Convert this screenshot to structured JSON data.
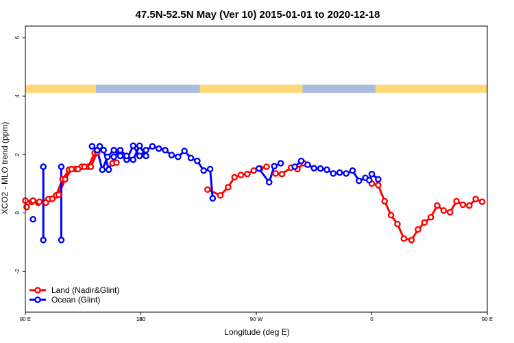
{
  "chart_data": {
    "type": "line",
    "title": "47.5N-52.5N May (Ver 10)   2015-01-01 to 2020-12-18",
    "xlabel": "Longitude (deg E)",
    "ylabel": "XCO2 - MLO trend (ppm)",
    "xlim": [
      90,
      450
    ],
    "ylim": [
      -3.4,
      6.4
    ],
    "x_ticks": [
      {
        "value": 90,
        "label": "90 E"
      },
      {
        "value": 180,
        "label": "180"
      },
      {
        "value": 270,
        "label": "90 W"
      },
      {
        "value": 360,
        "label": "0"
      },
      {
        "value": 450,
        "label": "90 E"
      },
      {
        "value": 540,
        "label": "180"
      }
    ],
    "y_ticks": [
      {
        "value": -2,
        "label": "-2"
      },
      {
        "value": 0,
        "label": "0"
      },
      {
        "value": 2,
        "label": "2"
      },
      {
        "value": 4,
        "label": "4"
      },
      {
        "value": 6,
        "label": "6"
      }
    ],
    "legend_position": "bottom-left",
    "colors": {
      "land": "#ff0000",
      "ocean": "#0000ff",
      "strip_land": "#ffd978",
      "strip_ocean": "#a8bcdc"
    },
    "land_mask": {
      "y": 4.25,
      "land_ranges": [
        [
          90,
          145
        ],
        [
          226,
          306
        ],
        [
          363,
          503
        ]
      ]
    },
    "series": [
      {
        "name": "Land (Nadir&Glint)",
        "color": "#ff0000",
        "points": [
          [
            90,
            0.42
          ],
          [
            95,
            0.38
          ],
          [
            100,
            0.35
          ],
          [
            108,
            0.47
          ],
          [
            114,
            0.6
          ],
          [
            119,
            1.15
          ],
          [
            124,
            1.48
          ],
          [
            129,
            1.5
          ],
          [
            134,
            1.58
          ],
          [
            139,
            1.58
          ],
          [
            144,
            2.05
          ],
          null,
          [
            158,
            1.7
          ],
          null,
          [
            232,
            0.8
          ],
          [
            242,
            0.6
          ],
          [
            248,
            0.88
          ],
          [
            253,
            1.22
          ],
          [
            258,
            1.3
          ],
          [
            263,
            1.33
          ],
          [
            268,
            1.45
          ],
          [
            273,
            1.52
          ],
          [
            278,
            1.58
          ],
          null,
          [
            285,
            1.35
          ],
          [
            290,
            1.33
          ],
          [
            297,
            1.55
          ],
          [
            302,
            1.5
          ],
          [
            307,
            1.7
          ],
          null,
          [
            360,
            1.0
          ],
          [
            365,
            0.95
          ],
          [
            370,
            0.4
          ],
          [
            375,
            -0.08
          ],
          [
            380,
            -0.38
          ],
          [
            385,
            -0.88
          ],
          [
            391,
            -0.93
          ],
          [
            396,
            -0.57
          ],
          [
            401,
            -0.33
          ],
          [
            406,
            -0.15
          ],
          [
            411,
            0.25
          ],
          [
            416,
            0.08
          ],
          [
            421,
            0.02
          ],
          [
            426,
            0.4
          ],
          [
            431,
            0.28
          ],
          [
            436,
            0.25
          ],
          [
            441,
            0.47
          ],
          [
            446,
            0.38
          ],
          [
            451,
            0.2
          ],
          [
            456,
            0.42
          ],
          [
            461,
            0.38
          ],
          [
            466,
            0.35
          ],
          [
            471,
            0.48
          ],
          [
            476,
            0.62
          ],
          [
            481,
            1.15
          ],
          [
            486,
            1.5
          ],
          [
            491,
            1.5
          ],
          [
            496,
            1.58
          ],
          [
            501,
            1.58
          ],
          [
            506,
            2.07
          ],
          null,
          [
            521,
            1.72
          ]
        ]
      },
      {
        "name": "Ocean (Glint)",
        "color": "#0000ff",
        "points": [
          [
            104,
            1.58
          ],
          [
            104,
            -0.93
          ],
          null,
          [
            142,
            2.28
          ],
          [
            146,
            2.15
          ],
          [
            150,
            1.48
          ],
          [
            154,
            1.92
          ],
          [
            159,
            2.15
          ],
          [
            164,
            1.95
          ],
          [
            169,
            1.82
          ],
          [
            174,
            2.3
          ],
          [
            179,
            1.95
          ],
          [
            184,
            2.15
          ],
          [
            189,
            2.28
          ],
          [
            194,
            2.2
          ],
          [
            199,
            2.15
          ],
          [
            204,
            1.98
          ],
          [
            209,
            1.92
          ],
          [
            214,
            2.12
          ],
          [
            219,
            1.88
          ],
          [
            224,
            1.78
          ],
          [
            229,
            1.45
          ],
          [
            234,
            1.5
          ],
          [
            236,
            0.5
          ],
          null,
          [
            272,
            1.52
          ],
          [
            280,
            1.05
          ],
          [
            284,
            1.6
          ],
          [
            289,
            1.7
          ],
          null,
          [
            300,
            1.58
          ],
          [
            305,
            1.78
          ],
          [
            310,
            1.65
          ],
          [
            315,
            1.53
          ],
          [
            320,
            1.52
          ],
          [
            325,
            1.48
          ],
          [
            330,
            1.35
          ],
          [
            335,
            1.38
          ],
          [
            340,
            1.35
          ],
          [
            345,
            1.45
          ],
          [
            350,
            1.1
          ],
          [
            355,
            1.2
          ],
          [
            358,
            1.12
          ],
          [
            360,
            1.33
          ],
          [
            365,
            1.15
          ],
          null,
          [
            456,
            -0.22
          ],
          null,
          [
            478,
            1.58
          ],
          [
            478,
            -0.93
          ],
          null,
          [
            508,
            2.28
          ],
          [
            511,
            2.15
          ],
          [
            515,
            1.48
          ],
          [
            519,
            1.92
          ],
          [
            524,
            2.15
          ],
          [
            529,
            1.95
          ],
          [
            534,
            1.82
          ],
          [
            539,
            2.3
          ],
          [
            544,
            1.95
          ]
        ]
      }
    ]
  }
}
